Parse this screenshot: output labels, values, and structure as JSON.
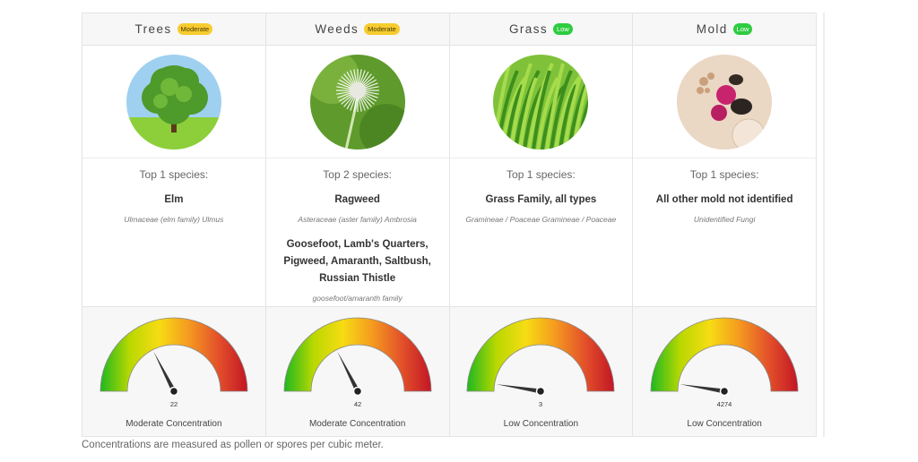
{
  "colors": {
    "moderate": "#f7cc2f",
    "low": "#2ecc40",
    "gauge_stops": [
      "#1fb820",
      "#b9d800",
      "#f6dc13",
      "#f59a20",
      "#e3512a",
      "#c31625"
    ]
  },
  "columns": [
    {
      "title": "Trees",
      "badge": "Moderate",
      "badge_level": "moderate",
      "image_icon": "tree-icon",
      "top_label": "Top 1 species:",
      "species": [
        {
          "name": "Elm",
          "latin": "Ulmaceae (elm family) Ulmus"
        }
      ],
      "gauge_value": "22",
      "gauge_fraction": 0.35,
      "concentration": "Moderate Concentration"
    },
    {
      "title": "Weeds",
      "badge": "Moderate",
      "badge_level": "moderate",
      "image_icon": "dandelion-icon",
      "top_label": "Top 2 species:",
      "species": [
        {
          "name": "Ragweed",
          "latin": "Asteraceae (aster family) Ambrosia"
        },
        {
          "name": "Goosefoot, Lamb's Quarters, Pigweed, Amaranth, Saltbush, Russian Thistle",
          "latin": "goosefoot/amaranth family Chenopodiaceae/Amaranthaceae"
        }
      ],
      "gauge_value": "42",
      "gauge_fraction": 0.35,
      "concentration": "Moderate Concentration"
    },
    {
      "title": "Grass",
      "badge": "Low",
      "badge_level": "low",
      "image_icon": "grass-icon",
      "top_label": "Top 1 species:",
      "species": [
        {
          "name": "Grass Family, all types",
          "latin": "Gramineae / Poaceae Gramineae / Poaceae"
        }
      ],
      "gauge_value": "3",
      "gauge_fraction": 0.05,
      "concentration": "Low Concentration"
    },
    {
      "title": "Mold",
      "badge": "Low",
      "badge_level": "low",
      "image_icon": "mold-spores-icon",
      "top_label": "Top 1 species:",
      "species": [
        {
          "name": "All other mold not identified",
          "latin": "Unidentified Fungi"
        }
      ],
      "gauge_value": "4274",
      "gauge_fraction": 0.05,
      "concentration": "Low Concentration"
    }
  ],
  "footnote": "Concentrations are measured as pollen or spores per cubic meter."
}
